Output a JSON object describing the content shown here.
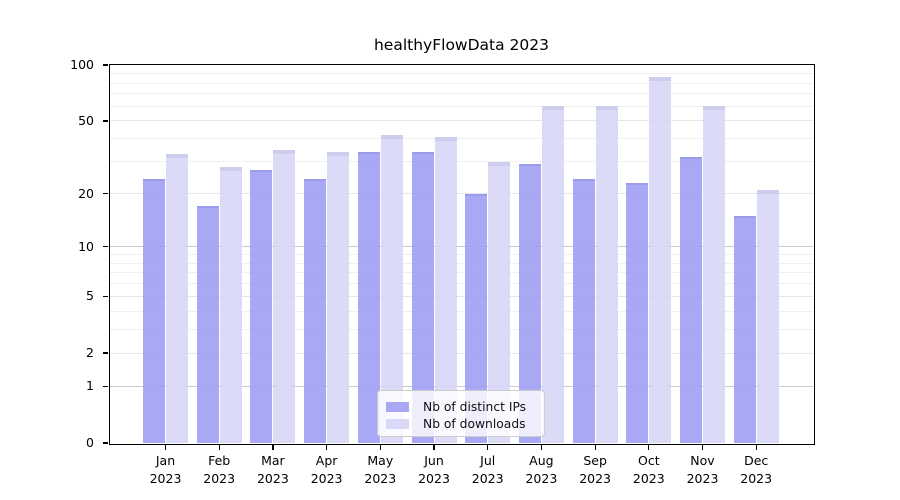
{
  "chart_data": {
    "type": "bar",
    "title": "healthyFlowData 2023",
    "categories": [
      "Jan 2023",
      "Feb 2023",
      "Mar 2023",
      "Apr 2023",
      "May 2023",
      "Jun 2023",
      "Jul 2023",
      "Aug 2023",
      "Sep 2023",
      "Oct 2023",
      "Nov 2023",
      "Dec 2023"
    ],
    "series": [
      {
        "name": "Nb of distinct IPs",
        "color": "#a8a8f4",
        "values": [
          24,
          17,
          27,
          24,
          34,
          34,
          20,
          29,
          24,
          23,
          32,
          15
        ]
      },
      {
        "name": "Nb of downloads",
        "color": "#dadaf8",
        "values": [
          33,
          28,
          35,
          34,
          42,
          41,
          30,
          60,
          60,
          86,
          60,
          21
        ]
      }
    ],
    "yscale": "symlog-log1p",
    "ylim": [
      0,
      100
    ],
    "y_ticks": [
      100,
      50,
      20,
      10,
      5,
      2,
      1,
      0
    ],
    "gridlines": {
      "major": [
        1,
        10
      ],
      "mid": [
        2,
        5,
        20,
        50
      ],
      "minor": [
        3,
        4,
        6,
        7,
        8,
        9,
        30,
        40,
        60,
        70,
        80,
        90
      ]
    },
    "grid": "horizontal",
    "legend_position": "inside-bottom-center"
  },
  "legend": {
    "items": [
      {
        "label": "Nb of distinct IPs",
        "color": "#a8a8f4"
      },
      {
        "label": "Nb of downloads",
        "color": "#dadaf8"
      }
    ]
  }
}
